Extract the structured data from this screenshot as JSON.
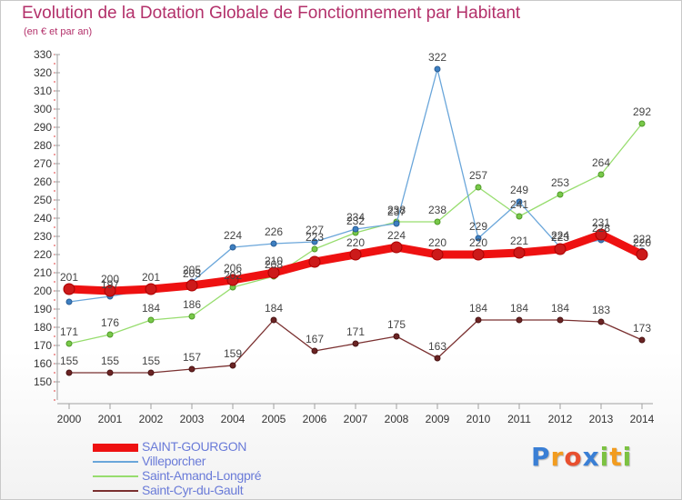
{
  "header": {
    "title": "Evolution de la Dotation Globale de Fonctionnement par Habitant",
    "subtitle": "(en € et par an)"
  },
  "logo": {
    "letters": [
      "P",
      "r",
      "o",
      "x",
      "i",
      "t",
      "i"
    ],
    "colors": [
      "#3a7fd5",
      "#f29c1f",
      "#e8502f",
      "#3a7fd5",
      "#7cc242",
      "#f29c1f",
      "#7cc242"
    ]
  },
  "chart_data": {
    "type": "line",
    "x": [
      "2000",
      "2001",
      "2002",
      "2003",
      "2004",
      "2005",
      "2006",
      "2007",
      "2008",
      "2009",
      "2010",
      "2011",
      "2012",
      "2013",
      "2014"
    ],
    "ylim": [
      140,
      330
    ],
    "yticks": [
      150,
      160,
      170,
      180,
      190,
      200,
      210,
      220,
      230,
      240,
      250,
      260,
      270,
      280,
      290,
      300,
      310,
      320,
      330
    ],
    "grid": false,
    "legend_position": "bottom-left",
    "series": [
      {
        "name": "SAINT-GOURGON",
        "color": "#ee1111",
        "values": [
          201,
          200,
          201,
          203,
          206,
          210,
          216,
          220,
          224,
          220,
          220,
          221,
          223,
          231,
          220
        ]
      },
      {
        "name": "Villeporcher",
        "color": "#5b9bd5",
        "values": [
          194,
          197,
          201,
          205,
          224,
          226,
          227,
          234,
          237,
          322,
          229,
          249,
          224,
          228,
          222
        ]
      },
      {
        "name": "Saint-Amand-Longpré",
        "color": "#86d45b",
        "values": [
          171,
          176,
          184,
          186,
          202,
          208,
          223,
          232,
          238,
          238,
          257,
          241,
          253,
          264,
          292
        ]
      },
      {
        "name": "Saint-Cyr-du-Gault",
        "color": "#7a3030",
        "values": [
          155,
          155,
          155,
          157,
          159,
          184,
          167,
          171,
          175,
          163,
          184,
          184,
          184,
          183,
          173
        ]
      }
    ],
    "data_labels": [
      [
        "201",
        "200",
        "201",
        "203",
        "206",
        "210",
        "",
        "220",
        "224",
        "220",
        "220",
        "221",
        "223",
        "231",
        "220"
      ],
      [
        "",
        "197",
        "",
        "205",
        "224",
        "226",
        "227",
        "234",
        "237",
        "322",
        "229",
        "249",
        "224",
        "228",
        "222"
      ],
      [
        "171",
        "176",
        "184",
        "186",
        "202",
        "208",
        "223",
        "232",
        "238",
        "238",
        "257",
        "241",
        "253",
        "264",
        "292"
      ],
      [
        "155",
        "155",
        "155",
        "157",
        "159",
        "184",
        "167",
        "171",
        "175",
        "163",
        "184",
        "184",
        "184",
        "183",
        "173"
      ]
    ]
  }
}
